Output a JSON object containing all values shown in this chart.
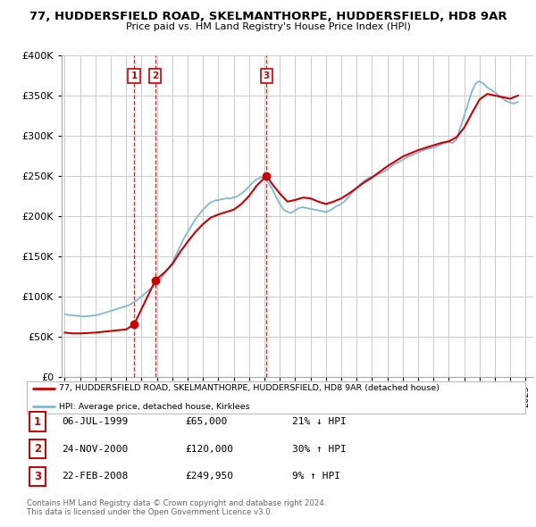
{
  "title": "77, HUDDERSFIELD ROAD, SKELMANTHORPE, HUDDERSFIELD, HD8 9AR",
  "subtitle": "Price paid vs. HM Land Registry's House Price Index (HPI)",
  "sales": [
    {
      "num": 1,
      "date_str": "06-JUL-1999",
      "year": 1999.51,
      "price": 65000,
      "hpi_pct": "21% ↓ HPI"
    },
    {
      "num": 2,
      "date_str": "24-NOV-2000",
      "year": 2000.9,
      "price": 120000,
      "hpi_pct": "30% ↑ HPI"
    },
    {
      "num": 3,
      "date_str": "22-FEB-2008",
      "year": 2008.14,
      "price": 249950,
      "hpi_pct": "9% ↑ HPI"
    }
  ],
  "hpi_line_color": "#7fb8d8",
  "price_line_color": "#cc0000",
  "marker_box_color": "#cc0000",
  "background_color": "#ffffff",
  "grid_color": "#cccccc",
  "ylim": [
    0,
    400000
  ],
  "xlim_start": 1994.8,
  "xlim_end": 2025.5,
  "legend_label_red": "77, HUDDERSFIELD ROAD, SKELMANTHORPE, HUDDERSFIELD, HD8 9AR (detached house)",
  "legend_label_blue": "HPI: Average price, detached house, Kirklees",
  "footer1": "Contains HM Land Registry data © Crown copyright and database right 2024.",
  "footer2": "This data is licensed under the Open Government Licence v3.0.",
  "hpi_data_x": [
    1995.0,
    1995.25,
    1995.5,
    1995.75,
    1996.0,
    1996.25,
    1996.5,
    1996.75,
    1997.0,
    1997.25,
    1997.5,
    1997.75,
    1998.0,
    1998.25,
    1998.5,
    1998.75,
    1999.0,
    1999.25,
    1999.5,
    1999.75,
    2000.0,
    2000.25,
    2000.5,
    2000.75,
    2001.0,
    2001.25,
    2001.5,
    2001.75,
    2002.0,
    2002.25,
    2002.5,
    2002.75,
    2003.0,
    2003.25,
    2003.5,
    2003.75,
    2004.0,
    2004.25,
    2004.5,
    2004.75,
    2005.0,
    2005.25,
    2005.5,
    2005.75,
    2006.0,
    2006.25,
    2006.5,
    2006.75,
    2007.0,
    2007.25,
    2007.5,
    2007.75,
    2008.0,
    2008.25,
    2008.5,
    2008.75,
    2009.0,
    2009.25,
    2009.5,
    2009.75,
    2010.0,
    2010.25,
    2010.5,
    2010.75,
    2011.0,
    2011.25,
    2011.5,
    2011.75,
    2012.0,
    2012.25,
    2012.5,
    2012.75,
    2013.0,
    2013.25,
    2013.5,
    2013.75,
    2014.0,
    2014.25,
    2014.5,
    2014.75,
    2015.0,
    2015.25,
    2015.5,
    2015.75,
    2016.0,
    2016.25,
    2016.5,
    2016.75,
    2017.0,
    2017.25,
    2017.5,
    2017.75,
    2018.0,
    2018.25,
    2018.5,
    2018.75,
    2019.0,
    2019.25,
    2019.5,
    2019.75,
    2020.0,
    2020.25,
    2020.5,
    2020.75,
    2021.0,
    2021.25,
    2021.5,
    2021.75,
    2022.0,
    2022.25,
    2022.5,
    2022.75,
    2023.0,
    2023.25,
    2023.5,
    2023.75,
    2024.0,
    2024.25,
    2024.5
  ],
  "hpi_data_y": [
    78000,
    77000,
    76500,
    76000,
    75500,
    75000,
    75500,
    76000,
    76500,
    77500,
    79000,
    80500,
    82000,
    83500,
    85000,
    86500,
    88000,
    90000,
    93000,
    96000,
    100000,
    104000,
    108000,
    112000,
    116000,
    122000,
    128000,
    135000,
    142000,
    152000,
    162000,
    172000,
    180000,
    188000,
    196000,
    202000,
    208000,
    213000,
    217000,
    219000,
    220000,
    221000,
    222000,
    222000,
    223000,
    225000,
    228000,
    232000,
    237000,
    242000,
    246000,
    248000,
    247000,
    242000,
    234000,
    224000,
    215000,
    208000,
    205000,
    204000,
    207000,
    210000,
    211000,
    210000,
    209000,
    208000,
    207000,
    206000,
    205000,
    207000,
    210000,
    213000,
    215000,
    219000,
    224000,
    230000,
    235000,
    240000,
    244000,
    247000,
    249000,
    251000,
    253000,
    255000,
    258000,
    262000,
    265000,
    267000,
    270000,
    273000,
    275000,
    277000,
    279000,
    281000,
    283000,
    284000,
    285000,
    287000,
    289000,
    291000,
    292000,
    291000,
    295000,
    310000,
    325000,
    340000,
    355000,
    365000,
    368000,
    365000,
    360000,
    357000,
    354000,
    350000,
    346000,
    343000,
    341000,
    340000,
    342000
  ],
  "price_line_x": [
    1995.0,
    1995.5,
    1996.0,
    1996.5,
    1997.0,
    1997.5,
    1998.0,
    1998.5,
    1999.0,
    1999.51,
    2000.9,
    2001.5,
    2002.0,
    2002.5,
    2003.0,
    2003.5,
    2004.0,
    2004.5,
    2005.0,
    2005.5,
    2006.0,
    2006.5,
    2007.0,
    2007.5,
    2008.14,
    2008.5,
    2009.0,
    2009.5,
    2010.0,
    2010.5,
    2011.0,
    2011.5,
    2012.0,
    2012.5,
    2013.0,
    2013.5,
    2014.0,
    2014.5,
    2015.0,
    2015.5,
    2016.0,
    2016.5,
    2017.0,
    2017.5,
    2018.0,
    2018.5,
    2019.0,
    2019.5,
    2020.0,
    2020.5,
    2021.0,
    2021.5,
    2022.0,
    2022.5,
    2023.0,
    2023.5,
    2024.0,
    2024.5
  ],
  "price_line_y": [
    55000,
    54000,
    54000,
    54500,
    55000,
    56000,
    57000,
    58000,
    59000,
    65000,
    120000,
    130000,
    140000,
    155000,
    168000,
    180000,
    190000,
    198000,
    202000,
    205000,
    208000,
    215000,
    225000,
    238000,
    249950,
    240000,
    228000,
    218000,
    220000,
    223000,
    222000,
    218000,
    215000,
    218000,
    222000,
    228000,
    235000,
    242000,
    248000,
    255000,
    262000,
    268000,
    274000,
    278000,
    282000,
    285000,
    288000,
    291000,
    293000,
    298000,
    310000,
    328000,
    345000,
    352000,
    350000,
    348000,
    346000,
    350000
  ]
}
